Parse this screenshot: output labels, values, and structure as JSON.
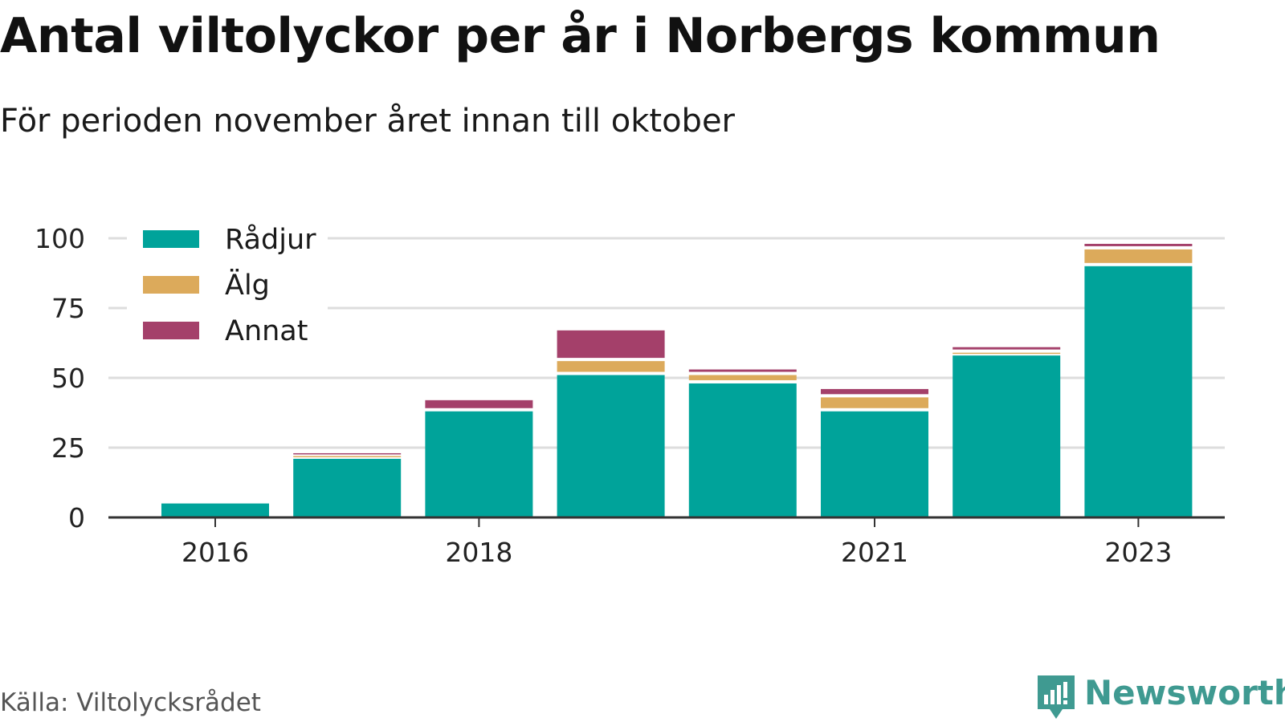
{
  "title": "Antal viltolyckor per år i Norbergs kommun",
  "subtitle": "För perioden november året innan till oktober",
  "source": "Källa: Viltolycksrådet",
  "brand": "Newsworthy",
  "colors": {
    "radjur": "#00a39a",
    "alg": "#dcaa5b",
    "annat": "#a4406a",
    "grid": "#dddddd",
    "axis": "#333333",
    "brand": "#3f9a91"
  },
  "chart_data": {
    "type": "bar",
    "stacked": true,
    "categories": [
      "2016",
      "2017",
      "2018",
      "2019",
      "2020",
      "2021",
      "2022",
      "2023"
    ],
    "xtick_labels": [
      "2016",
      "",
      "2018",
      "",
      "",
      "2021",
      "",
      "2023"
    ],
    "series": [
      {
        "name": "Rådjur",
        "color": "#00a39a",
        "values": [
          5,
          21,
          38,
          51,
          48,
          38,
          58,
          90
        ]
      },
      {
        "name": "Älg",
        "color": "#dcaa5b",
        "values": [
          0,
          1,
          0,
          5,
          3,
          5,
          1,
          6
        ]
      },
      {
        "name": "Annat",
        "color": "#a4406a",
        "values": [
          0,
          1,
          4,
          11,
          2,
          3,
          2,
          2
        ]
      }
    ],
    "yticks": [
      0,
      25,
      50,
      75,
      100
    ],
    "ylim": [
      0,
      100
    ],
    "grid": true,
    "legend_position": "top-left",
    "xlabel": "",
    "ylabel": ""
  }
}
